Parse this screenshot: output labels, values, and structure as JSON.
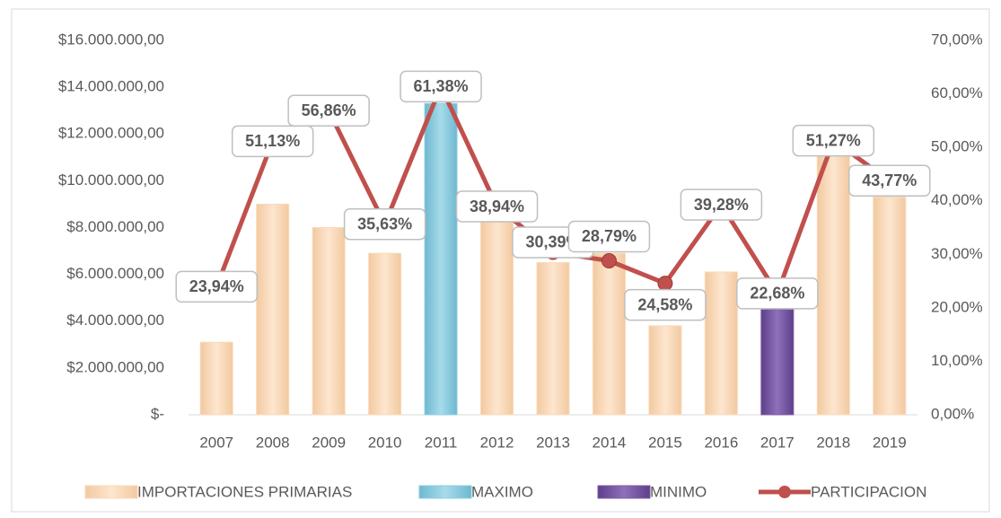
{
  "chart_data": {
    "type": "bar_line",
    "categories": [
      "2007",
      "2008",
      "2009",
      "2010",
      "2011",
      "2012",
      "2013",
      "2014",
      "2015",
      "2016",
      "2017",
      "2018",
      "2019"
    ],
    "series": [
      {
        "name": "IMPORTACIONES PRIMARIAS",
        "type": "bar",
        "color": "#FAD9B8",
        "values": [
          3100000,
          9000000,
          8000000,
          6900000,
          null,
          8300000,
          6500000,
          6900000,
          3800000,
          6100000,
          null,
          11100000,
          9300000
        ]
      },
      {
        "name": "MAXIMO",
        "type": "bar",
        "color": "#8DCDE0",
        "values": [
          null,
          null,
          null,
          null,
          13300000,
          null,
          null,
          null,
          null,
          null,
          null,
          null,
          null
        ]
      },
      {
        "name": "MINIMO",
        "type": "bar",
        "color": "#7B5BA6",
        "values": [
          null,
          null,
          null,
          null,
          null,
          null,
          null,
          null,
          null,
          null,
          4500000,
          null,
          null
        ]
      },
      {
        "name": "PARTICIPACION",
        "type": "line",
        "axis": "y2",
        "color": "#C0504D",
        "values": [
          23.94,
          51.13,
          56.86,
          35.63,
          61.38,
          38.94,
          30.39,
          28.79,
          24.58,
          39.28,
          22.68,
          51.27,
          43.77
        ],
        "value_labels": [
          "23,94%",
          "51,13%",
          "56,86%",
          "35,63%",
          "61,38%",
          "38,94%",
          "30,39%",
          "28,79%",
          "24,58%",
          "39,28%",
          "22,68%",
          "51,27%",
          "43,77%"
        ]
      }
    ],
    "ylim": [
      0,
      16000000
    ],
    "yticks": [
      {
        "value": 0,
        "label": "$-"
      },
      {
        "value": 2000000,
        "label": "$2.000.000,00"
      },
      {
        "value": 4000000,
        "label": "$4.000.000,00"
      },
      {
        "value": 6000000,
        "label": "$6.000.000,00"
      },
      {
        "value": 8000000,
        "label": "$8.000.000,00"
      },
      {
        "value": 10000000,
        "label": "$10.000.000,00"
      },
      {
        "value": 12000000,
        "label": "$12.000.000,00"
      },
      {
        "value": 14000000,
        "label": "$14.000.000,00"
      },
      {
        "value": 16000000,
        "label": "$16.000.000,00"
      }
    ],
    "y2lim": [
      0,
      70
    ],
    "y2ticks": [
      {
        "value": 0,
        "label": "0,00%"
      },
      {
        "value": 10,
        "label": "10,00%"
      },
      {
        "value": 20,
        "label": "20,00%"
      },
      {
        "value": 30,
        "label": "30,00%"
      },
      {
        "value": 40,
        "label": "40,00%"
      },
      {
        "value": 50,
        "label": "50,00%"
      },
      {
        "value": 60,
        "label": "60,00%"
      },
      {
        "value": 70,
        "label": "70,00%"
      }
    ],
    "grid": false,
    "legend": "bottom"
  }
}
